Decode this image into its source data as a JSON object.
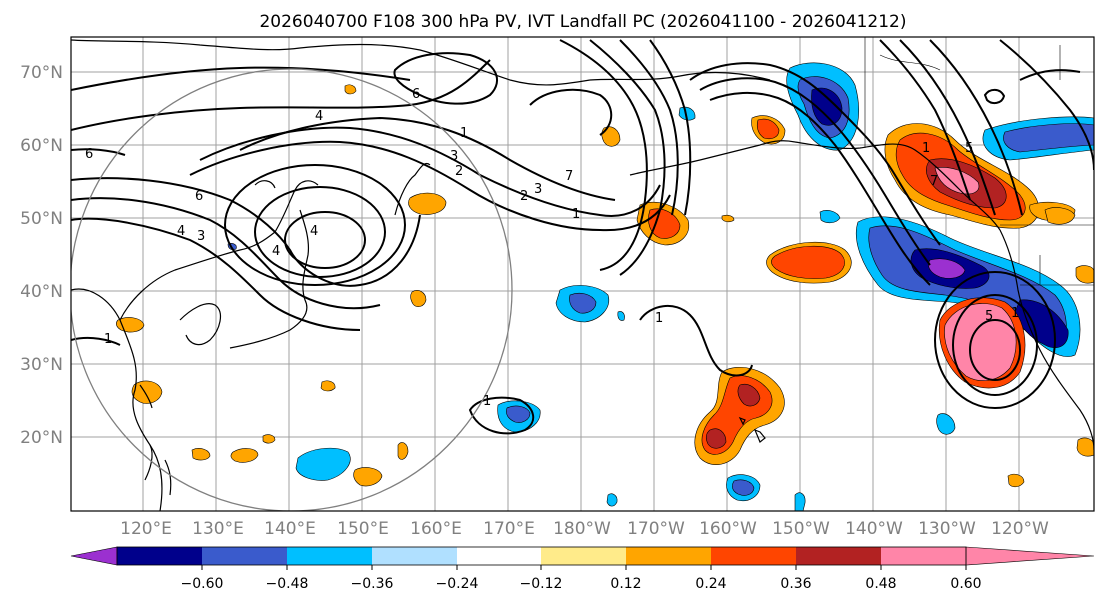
{
  "title": "2026040700 F108 300 hPa PV, IVT Landfall PC (2026041100 - 2026041212)",
  "map": {
    "lat_labels": [
      "70°N",
      "60°N",
      "50°N",
      "40°N",
      "30°N",
      "20°N"
    ],
    "lon_labels": [
      "120°E",
      "130°E",
      "140°E",
      "150°E",
      "160°E",
      "170°E",
      "180°W",
      "170°W",
      "160°W",
      "150°W",
      "140°W",
      "130°W",
      "120°W"
    ],
    "contour_labels": [
      "4",
      "4",
      "4",
      "4",
      "3",
      "3",
      "3",
      "2",
      "2",
      "1",
      "1",
      "1",
      "1",
      "1",
      "1",
      "1",
      "5",
      "5",
      "6",
      "6",
      "7",
      "7",
      "6"
    ]
  },
  "colorbar": {
    "ticks": [
      "−0.60",
      "−0.48",
      "−0.36",
      "−0.24",
      "−0.12",
      "0.12",
      "0.24",
      "0.36",
      "0.48",
      "0.60"
    ],
    "colors": [
      "#9b30d0",
      "#00008b",
      "#3a5bcc",
      "#00bfff",
      "#b0e0ff",
      "#ffffff",
      "#ffeb8a",
      "#ffa500",
      "#ff4500",
      "#b22222",
      "#ff85a8"
    ]
  }
}
